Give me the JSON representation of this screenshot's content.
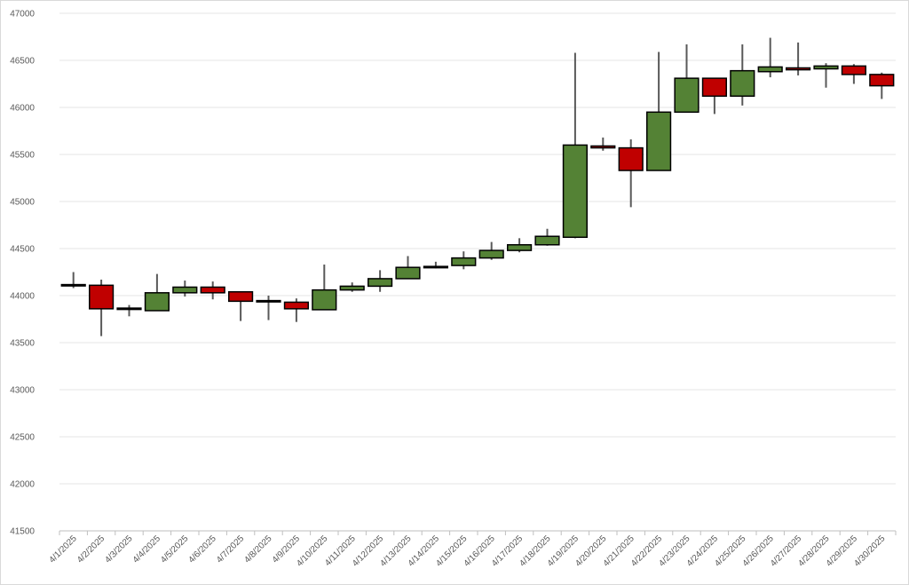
{
  "chart_data": {
    "type": "candlestick",
    "title": "",
    "xlabel": "",
    "ylabel": "",
    "ylim": [
      41500,
      47000
    ],
    "y_ticks": [
      41500,
      42000,
      42500,
      43000,
      43500,
      44000,
      44500,
      45000,
      45500,
      46000,
      46500,
      47000
    ],
    "grid": true,
    "colors": {
      "up": "#548235",
      "down": "#c00000",
      "wick": "#595959",
      "border": "#000000",
      "grid": "#e6e6e6"
    },
    "categories": [
      "4/1/2025",
      "4/2/2025",
      "4/3/2025",
      "4/4/2025",
      "4/5/2025",
      "4/6/2025",
      "4/7/2025",
      "4/8/2025",
      "4/9/2025",
      "4/10/2025",
      "4/11/2025",
      "4/12/2025",
      "4/13/2025",
      "4/14/2025",
      "4/15/2025",
      "4/16/2025",
      "4/17/2025",
      "4/18/2025",
      "4/19/2025",
      "4/20/2025",
      "4/21/2025",
      "4/22/2025",
      "4/23/2025",
      "4/24/2025",
      "4/25/2025",
      "4/26/2025",
      "4/27/2025",
      "4/28/2025",
      "4/29/2025",
      "4/30/2025"
    ],
    "open": [
      44110,
      44110,
      43860,
      43840,
      44030,
      44090,
      44040,
      43940,
      43930,
      43850,
      44060,
      44100,
      44180,
      44300,
      44320,
      44400,
      44480,
      44540,
      44620,
      45590,
      45570,
      45330,
      45950,
      46310,
      46120,
      46380,
      46420,
      46410,
      46440,
      46350
    ],
    "high": [
      44250,
      44170,
      43900,
      44230,
      44160,
      44150,
      44040,
      44000,
      43970,
      44330,
      44140,
      44270,
      44420,
      44360,
      44470,
      44570,
      44610,
      44710,
      46580,
      45680,
      45660,
      46590,
      46670,
      46310,
      46670,
      46740,
      46690,
      46470,
      46460,
      46370
    ],
    "low": [
      44080,
      43570,
      43780,
      43840,
      43990,
      43960,
      43730,
      43740,
      43720,
      43850,
      44040,
      44040,
      44180,
      44290,
      44280,
      44380,
      44460,
      44530,
      44610,
      45540,
      44940,
      45330,
      45950,
      45930,
      46020,
      46320,
      46340,
      46210,
      46250,
      46090
    ],
    "close": [
      44110,
      43860,
      43860,
      44030,
      44090,
      44030,
      43940,
      43940,
      43860,
      44060,
      44100,
      44180,
      44300,
      44310,
      44400,
      44480,
      44540,
      44630,
      45600,
      45570,
      45330,
      45950,
      46310,
      46120,
      46390,
      46430,
      46400,
      46440,
      46350,
      46230
    ]
  }
}
